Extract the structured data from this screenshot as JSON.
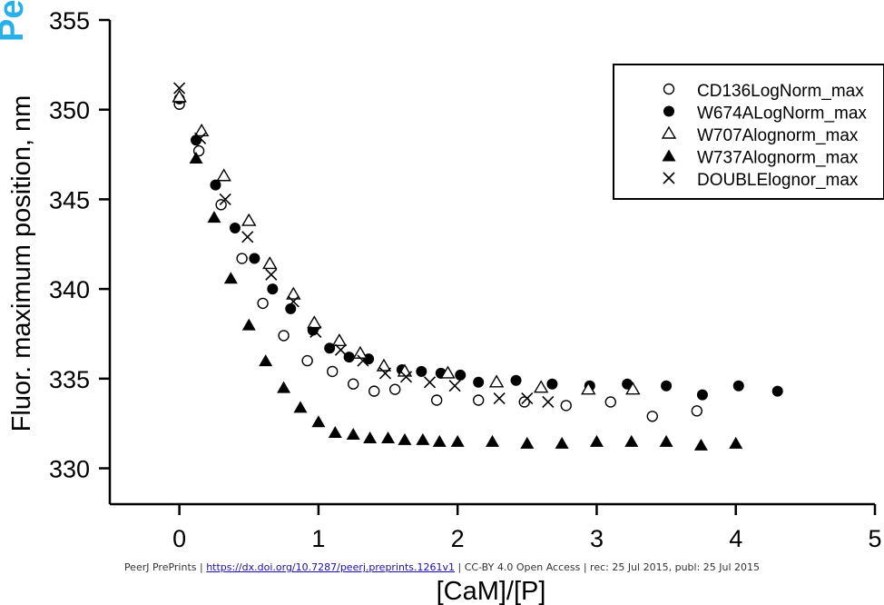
{
  "watermark": "PeerJ",
  "footer": {
    "prefix": "PeerJ PrePrints | ",
    "link": "https://dx.doi.org/10.7287/peerj.preprints.1261v1",
    "suffix": " | CC-BY 4.0 Open Access | rec: 25 Jul 2015, publ: 25 Jul 2015"
  },
  "chart_data": {
    "type": "scatter",
    "title": "",
    "xlabel": "[CaM]/[P]",
    "ylabel": "Fluor. maximum position, nm",
    "xlim": [
      -0.5,
      5
    ],
    "ylim": [
      328,
      355
    ],
    "xticks": [
      0,
      1,
      2,
      3,
      4,
      5
    ],
    "yticks": [
      330,
      335,
      340,
      345,
      350,
      355
    ],
    "grid": false,
    "legend_position": "top-right",
    "series": [
      {
        "name": "CD136LogNorm_max",
        "marker": "open-circle",
        "points": [
          [
            0,
            350.3
          ],
          [
            0.14,
            347.7
          ],
          [
            0.3,
            344.7
          ],
          [
            0.45,
            341.7
          ],
          [
            0.6,
            339.2
          ],
          [
            0.75,
            337.4
          ],
          [
            0.92,
            336.0
          ],
          [
            1.1,
            335.4
          ],
          [
            1.25,
            334.7
          ],
          [
            1.4,
            334.3
          ],
          [
            1.55,
            334.4
          ],
          [
            1.85,
            333.8
          ],
          [
            2.15,
            333.8
          ],
          [
            2.48,
            333.7
          ],
          [
            2.78,
            333.5
          ],
          [
            3.1,
            333.7
          ],
          [
            3.4,
            332.9
          ],
          [
            3.72,
            333.2
          ]
        ]
      },
      {
        "name": "W674ALogNorm_max",
        "marker": "filled-circle",
        "points": [
          [
            0,
            350.6
          ],
          [
            0.12,
            348.3
          ],
          [
            0.26,
            345.8
          ],
          [
            0.4,
            343.4
          ],
          [
            0.54,
            341.7
          ],
          [
            0.67,
            340.0
          ],
          [
            0.8,
            338.9
          ],
          [
            0.96,
            337.7
          ],
          [
            1.08,
            336.7
          ],
          [
            1.22,
            336.2
          ],
          [
            1.36,
            336.1
          ],
          [
            1.6,
            335.5
          ],
          [
            1.74,
            335.4
          ],
          [
            1.88,
            335.3
          ],
          [
            2.02,
            335.2
          ],
          [
            2.15,
            334.8
          ],
          [
            2.42,
            334.9
          ],
          [
            2.68,
            334.7
          ],
          [
            2.95,
            334.6
          ],
          [
            3.22,
            334.7
          ],
          [
            3.5,
            334.6
          ],
          [
            3.76,
            334.1
          ],
          [
            4.02,
            334.6
          ],
          [
            4.3,
            334.3
          ]
        ]
      },
      {
        "name": "W707Alognorm_max",
        "marker": "open-triangle",
        "points": [
          [
            0,
            350.7
          ],
          [
            0.16,
            348.8
          ],
          [
            0.32,
            346.3
          ],
          [
            0.5,
            343.8
          ],
          [
            0.65,
            341.4
          ],
          [
            0.82,
            339.7
          ],
          [
            0.97,
            338.1
          ],
          [
            1.15,
            337.1
          ],
          [
            1.3,
            336.4
          ],
          [
            1.47,
            335.7
          ],
          [
            1.62,
            335.4
          ],
          [
            1.93,
            335.3
          ],
          [
            2.28,
            334.8
          ],
          [
            2.6,
            334.5
          ],
          [
            2.94,
            334.4
          ],
          [
            3.26,
            334.4
          ]
        ]
      },
      {
        "name": "W737Alognorm_max",
        "marker": "filled-triangle",
        "points": [
          [
            0.12,
            347.3
          ],
          [
            0.25,
            344.0
          ],
          [
            0.37,
            340.6
          ],
          [
            0.5,
            338.0
          ],
          [
            0.62,
            336.0
          ],
          [
            0.75,
            334.5
          ],
          [
            0.87,
            333.4
          ],
          [
            1.0,
            332.6
          ],
          [
            1.12,
            332.0
          ],
          [
            1.25,
            331.9
          ],
          [
            1.37,
            331.7
          ],
          [
            1.5,
            331.7
          ],
          [
            1.62,
            331.6
          ],
          [
            1.75,
            331.6
          ],
          [
            1.87,
            331.5
          ],
          [
            2.0,
            331.5
          ],
          [
            2.25,
            331.5
          ],
          [
            2.5,
            331.4
          ],
          [
            2.75,
            331.4
          ],
          [
            3.0,
            331.5
          ],
          [
            3.25,
            331.5
          ],
          [
            3.5,
            331.5
          ],
          [
            3.75,
            331.3
          ],
          [
            4.0,
            331.4
          ]
        ]
      },
      {
        "name": "DOUBLElognor_max",
        "marker": "x",
        "points": [
          [
            0,
            351.2
          ],
          [
            0.15,
            348.4
          ],
          [
            0.33,
            345.0
          ],
          [
            0.49,
            342.9
          ],
          [
            0.66,
            340.8
          ],
          [
            0.82,
            339.3
          ],
          [
            0.98,
            337.6
          ],
          [
            1.16,
            336.6
          ],
          [
            1.32,
            336.0
          ],
          [
            1.48,
            335.3
          ],
          [
            1.63,
            335.1
          ],
          [
            1.8,
            334.8
          ],
          [
            1.98,
            334.6
          ],
          [
            2.3,
            333.9
          ],
          [
            2.5,
            333.9
          ],
          [
            2.65,
            333.7
          ]
        ]
      }
    ]
  }
}
